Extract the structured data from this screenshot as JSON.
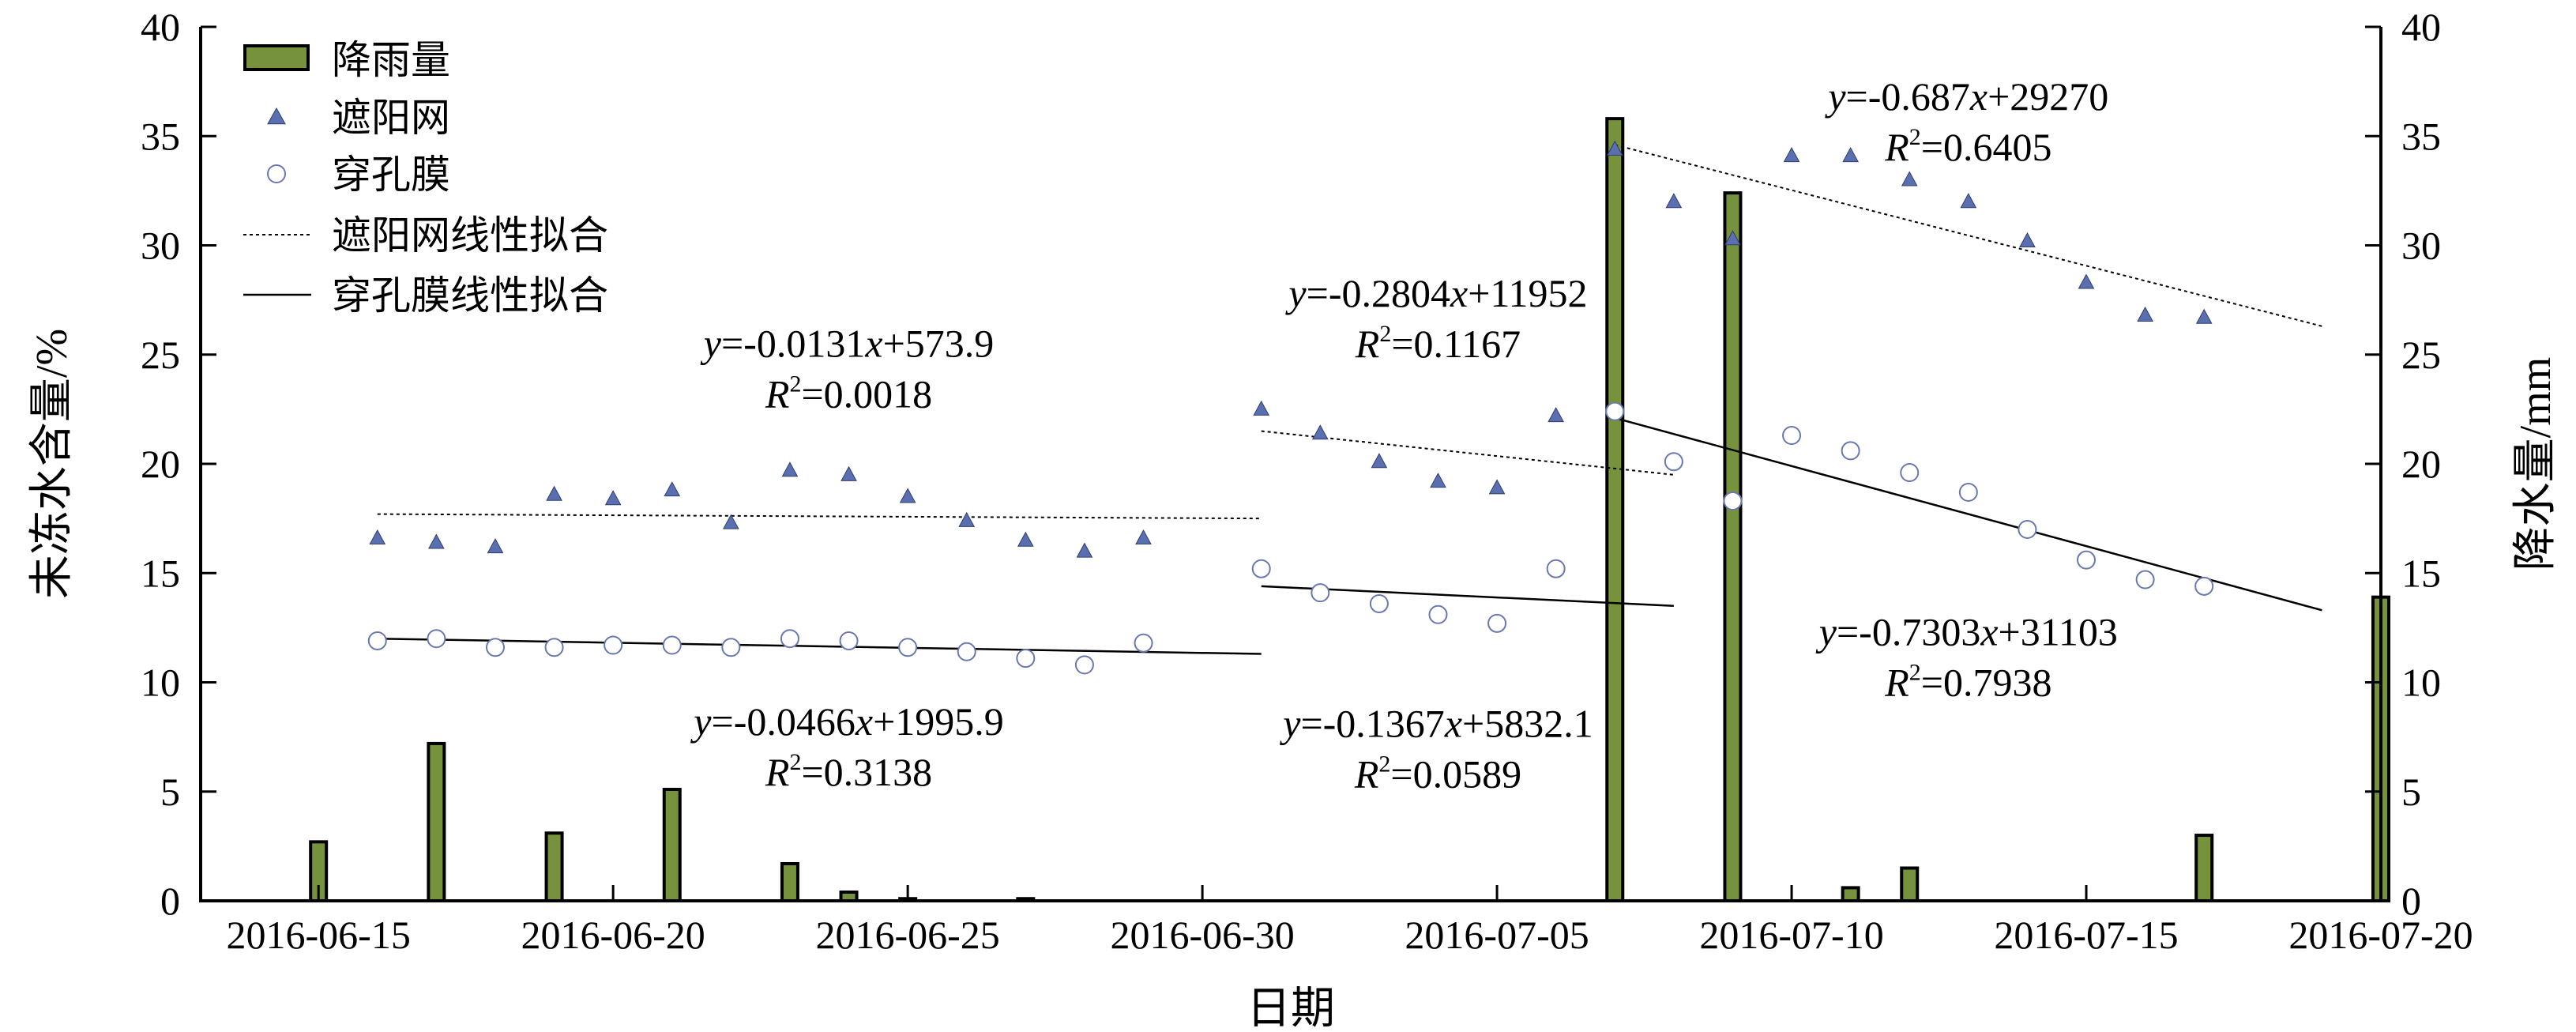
{
  "chart_data": {
    "type": "bar+scatter",
    "xlabel": "日期",
    "ylabel_left": "未冻水含量/%",
    "ylabel_right": "降水量/mm",
    "ylim_left": [
      0,
      40
    ],
    "ylim_right": [
      0,
      40
    ],
    "xlim": [
      "2016-06-13",
      "2016-07-20"
    ],
    "x_ticks": [
      "2016-06-15",
      "2016-06-20",
      "2016-06-25",
      "2016-06-30",
      "2016-07-05",
      "2016-07-10",
      "2016-07-15",
      "2016-07-20"
    ],
    "y_ticks": [
      0,
      5,
      10,
      15,
      20,
      25,
      30,
      35,
      40
    ],
    "legend": {
      "position": "top-left",
      "rainfall": "降雨量",
      "shade": "遮阳网",
      "film": "穿孔膜",
      "shade_fit": "遮阳网线性拟合",
      "film_fit": "穿孔膜线性拟合"
    },
    "colors": {
      "rain_fill": "#76923c",
      "rain_edge": "#000000",
      "triangle": "#5a6fb0",
      "circle_edge": "#6a78b0"
    },
    "rainfall": {
      "name": "降雨量",
      "x": [
        "2016-06-15",
        "2016-06-17",
        "2016-06-19",
        "2016-06-21",
        "2016-06-23",
        "2016-06-24",
        "2016-06-25",
        "2016-06-27",
        "2016-07-07",
        "2016-07-09",
        "2016-07-11",
        "2016-07-12",
        "2016-07-17",
        "2016-07-20"
      ],
      "values": [
        2.7,
        7.2,
        3.1,
        5.1,
        1.7,
        0.4,
        0.1,
        0.1,
        35.8,
        32.4,
        0.6,
        1.5,
        3.0,
        13.9
      ]
    },
    "shade_net": {
      "name": "遮阳网",
      "x": [
        "2016-06-16",
        "2016-06-17",
        "2016-06-18",
        "2016-06-19",
        "2016-06-20",
        "2016-06-21",
        "2016-06-22",
        "2016-06-23",
        "2016-06-24",
        "2016-06-25",
        "2016-06-26",
        "2016-06-27",
        "2016-06-28",
        "2016-06-29",
        "2016-07-01",
        "2016-07-02",
        "2016-07-03",
        "2016-07-04",
        "2016-07-05",
        "2016-07-06",
        "2016-07-07",
        "2016-07-08",
        "2016-07-09",
        "2016-07-10",
        "2016-07-11",
        "2016-07-12",
        "2016-07-13",
        "2016-07-14",
        "2016-07-15",
        "2016-07-16",
        "2016-07-17"
      ],
      "values": [
        16.6,
        16.4,
        16.2,
        18.6,
        18.4,
        18.8,
        17.3,
        19.7,
        19.5,
        18.5,
        17.4,
        16.5,
        16.0,
        16.6,
        22.5,
        21.4,
        20.1,
        19.2,
        18.9,
        22.2,
        34.4,
        32.0,
        30.3,
        34.1,
        34.1,
        33.0,
        32.0,
        30.2,
        28.3,
        26.8,
        26.7
      ]
    },
    "perforated_film": {
      "name": "穿孔膜",
      "x": [
        "2016-06-16",
        "2016-06-17",
        "2016-06-18",
        "2016-06-19",
        "2016-06-20",
        "2016-06-21",
        "2016-06-22",
        "2016-06-23",
        "2016-06-24",
        "2016-06-25",
        "2016-06-26",
        "2016-06-27",
        "2016-06-28",
        "2016-06-29",
        "2016-07-01",
        "2016-07-02",
        "2016-07-03",
        "2016-07-04",
        "2016-07-05",
        "2016-07-06",
        "2016-07-07",
        "2016-07-08",
        "2016-07-09",
        "2016-07-10",
        "2016-07-11",
        "2016-07-12",
        "2016-07-13",
        "2016-07-14",
        "2016-07-15",
        "2016-07-16",
        "2016-07-17"
      ],
      "values": [
        11.9,
        12.0,
        11.6,
        11.6,
        11.7,
        11.7,
        11.6,
        12.0,
        11.9,
        11.6,
        11.4,
        11.1,
        10.8,
        11.8,
        15.2,
        14.1,
        13.6,
        13.1,
        12.7,
        15.2,
        22.4,
        20.1,
        18.3,
        21.3,
        20.6,
        19.6,
        18.7,
        17.0,
        15.6,
        14.7,
        14.4
      ]
    },
    "fit_lines": [
      {
        "style": "dotted",
        "x": [
          "2016-06-16",
          "2016-07-01"
        ],
        "y": [
          17.7,
          17.5
        ]
      },
      {
        "style": "dotted",
        "x": [
          "2016-07-01",
          "2016-07-08"
        ],
        "y": [
          21.5,
          19.5
        ]
      },
      {
        "style": "dotted",
        "x": [
          "2016-07-07",
          "2016-07-19"
        ],
        "y": [
          34.6,
          26.3
        ]
      },
      {
        "style": "solid",
        "x": [
          "2016-06-16",
          "2016-07-01"
        ],
        "y": [
          12.0,
          11.3
        ]
      },
      {
        "style": "solid",
        "x": [
          "2016-07-01",
          "2016-07-08"
        ],
        "y": [
          14.4,
          13.5
        ]
      },
      {
        "style": "solid",
        "x": [
          "2016-07-07",
          "2016-07-19"
        ],
        "y": [
          22.1,
          13.3
        ]
      }
    ],
    "annotations": [
      {
        "x": "2016-06-24",
        "y": 24.9,
        "coef": "-0.0131",
        "const": "+573.9",
        "r2": "=0.0018"
      },
      {
        "x": "2016-06-24",
        "y": 7.6,
        "coef": "-0.0466",
        "const": "+1995.9",
        "r2": "=0.3138"
      },
      {
        "x": "2016-07-04",
        "y": 27.2,
        "coef": "-0.2804",
        "const": "+11952",
        "r2": "=0.1167"
      },
      {
        "x": "2016-07-04",
        "y": 7.5,
        "coef": "-0.1367",
        "const": "+5832.1",
        "r2": "=0.0589"
      },
      {
        "x": "2016-07-13",
        "y": 36.2,
        "coef": "-0.687",
        "const": "+29270",
        "r2": "=0.6405"
      },
      {
        "x": "2016-07-13",
        "y": 11.7,
        "coef": "-0.7303",
        "const": "+31103",
        "r2": "=0.7938"
      }
    ]
  }
}
